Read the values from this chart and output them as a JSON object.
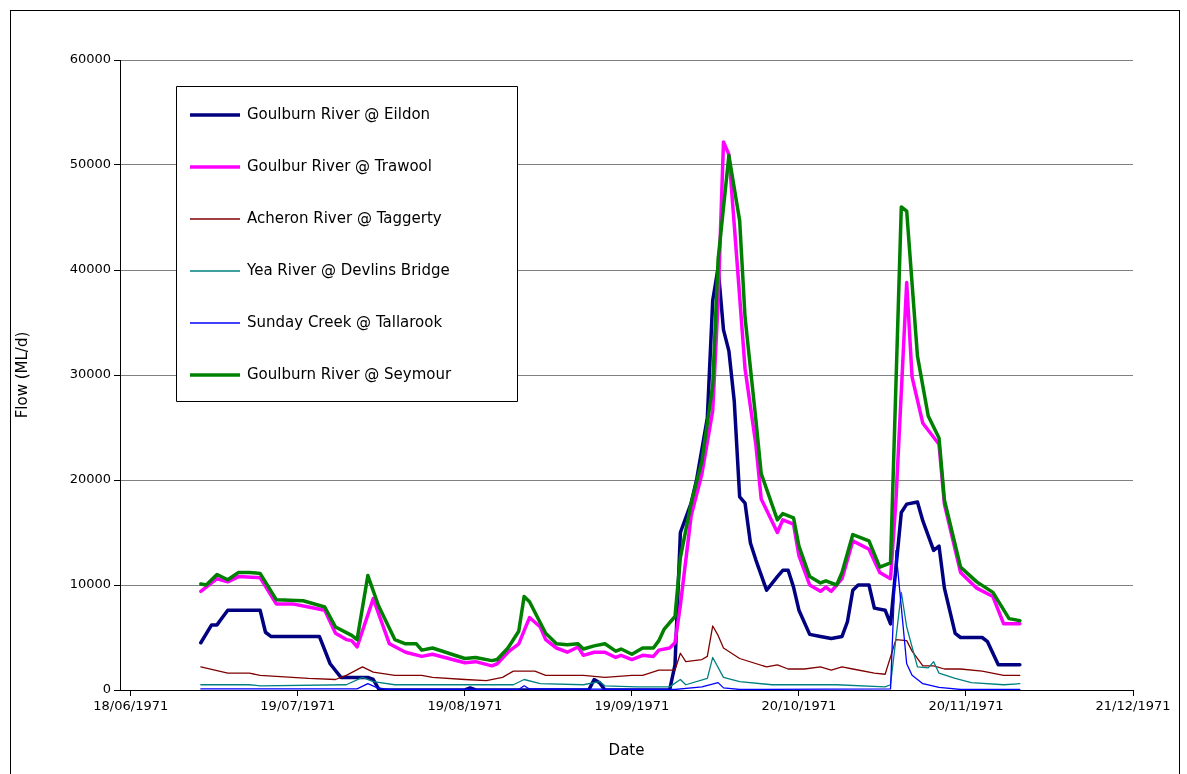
{
  "chart_data": {
    "type": "line",
    "xlabel": "Date",
    "ylabel": "Flow (ML/d)",
    "xlim": [
      "1971-06-16",
      "1971-12-21"
    ],
    "xticks": [
      {
        "value": "1971-06-18",
        "label": "18/06/1971"
      },
      {
        "value": "1971-07-19",
        "label": "19/07/1971"
      },
      {
        "value": "1971-08-19",
        "label": "19/08/1971"
      },
      {
        "value": "1971-09-19",
        "label": "19/09/1971"
      },
      {
        "value": "1971-10-20",
        "label": "20/10/1971"
      },
      {
        "value": "1971-11-20",
        "label": "20/11/1971"
      },
      {
        "value": "1971-12-21",
        "label": "21/12/1971"
      }
    ],
    "ylim": [
      0,
      60000
    ],
    "yticks": [
      0,
      10000,
      20000,
      30000,
      40000,
      50000,
      60000
    ],
    "grid": "y",
    "legend": "top left",
    "series": [
      {
        "name": "Goulburn River @ Eildon",
        "color": "#000080",
        "x": [
          "1971-07-01",
          "1971-07-03",
          "1971-07-04",
          "1971-07-05",
          "1971-07-06",
          "1971-07-12",
          "1971-07-13",
          "1971-07-14",
          "1971-07-23",
          "1971-07-25",
          "1971-07-27",
          "1971-08-01",
          "1971-08-02",
          "1971-08-03",
          "1971-08-04",
          "1971-08-19",
          "1971-08-20",
          "1971-08-21",
          "1971-09-11",
          "1971-09-12",
          "1971-09-13",
          "1971-09-14",
          "1971-09-26",
          "1971-09-27",
          "1971-09-28",
          "1971-09-30",
          "1971-10-01",
          "1971-10-03",
          "1971-10-04",
          "1971-10-05",
          "1971-10-06",
          "1971-10-07",
          "1971-10-08",
          "1971-10-09",
          "1971-10-10",
          "1971-10-11",
          "1971-10-12",
          "1971-10-14",
          "1971-10-16",
          "1971-10-17",
          "1971-10-18",
          "1971-10-19",
          "1971-10-20",
          "1971-10-22",
          "1971-10-24",
          "1971-10-26",
          "1971-10-28",
          "1971-10-29",
          "1971-10-30",
          "1971-10-31",
          "1971-11-02",
          "1971-11-03",
          "1971-11-05",
          "1971-11-06",
          "1971-11-08",
          "1971-11-09",
          "1971-11-11",
          "1971-11-12",
          "1971-11-14",
          "1971-11-15",
          "1971-11-16",
          "1971-11-18",
          "1971-11-19",
          "1971-11-23",
          "1971-11-24",
          "1971-11-26",
          "1971-11-30"
        ],
        "values": [
          4500,
          6200,
          6200,
          6900,
          7600,
          7600,
          5500,
          5100,
          5100,
          2500,
          1200,
          1200,
          1000,
          100,
          0,
          0,
          200,
          0,
          0,
          1000,
          700,
          0,
          0,
          2400,
          15000,
          17800,
          20000,
          25900,
          37100,
          40200,
          34300,
          32300,
          27500,
          18400,
          17800,
          14000,
          12400,
          9500,
          10800,
          11400,
          11400,
          9800,
          7600,
          5300,
          5100,
          4900,
          5100,
          6500,
          9500,
          10000,
          10000,
          7800,
          7600,
          6300,
          16900,
          17700,
          17900,
          16100,
          13300,
          13700,
          9700,
          5400,
          5000,
          5000,
          4600,
          2400,
          2400
        ]
      },
      {
        "name": "Goulbur River @ Trawool",
        "color": "#ff00ff",
        "x": [
          "1971-07-01",
          "1971-07-02",
          "1971-07-04",
          "1971-07-06",
          "1971-07-08",
          "1971-07-12",
          "1971-07-15",
          "1971-07-18",
          "1971-07-21",
          "1971-07-24",
          "1971-07-26",
          "1971-07-28",
          "1971-07-29",
          "1971-07-30",
          "1971-08-02",
          "1971-08-05",
          "1971-08-08",
          "1971-08-11",
          "1971-08-13",
          "1971-08-19",
          "1971-08-21",
          "1971-08-24",
          "1971-08-25",
          "1971-08-27",
          "1971-08-29",
          "1971-08-31",
          "1971-09-02",
          "1971-09-03",
          "1971-09-05",
          "1971-09-07",
          "1971-09-09",
          "1971-09-10",
          "1971-09-12",
          "1971-09-14",
          "1971-09-16",
          "1971-09-17",
          "1971-09-19",
          "1971-09-21",
          "1971-09-23",
          "1971-09-24",
          "1971-09-26",
          "1971-09-27",
          "1971-09-28",
          "1971-09-30",
          "1971-10-02",
          "1971-10-04",
          "1971-10-05",
          "1971-10-06",
          "1971-10-07",
          "1971-10-08",
          "1971-10-10",
          "1971-10-12",
          "1971-10-13",
          "1971-10-16",
          "1971-10-17",
          "1971-10-19",
          "1971-10-20",
          "1971-10-22",
          "1971-10-24",
          "1971-10-25",
          "1971-10-26",
          "1971-10-28",
          "1971-10-30",
          "1971-11-02",
          "1971-11-04",
          "1971-11-06",
          "1971-11-07",
          "1971-11-09",
          "1971-11-10",
          "1971-11-12",
          "1971-11-15",
          "1971-11-16",
          "1971-11-19",
          "1971-11-22",
          "1971-11-25",
          "1971-11-27",
          "1971-11-30"
        ],
        "values": [
          9400,
          9800,
          10600,
          10300,
          10800,
          10700,
          8200,
          8200,
          7900,
          7600,
          5400,
          4800,
          4700,
          4100,
          8700,
          4400,
          3600,
          3200,
          3400,
          2600,
          2700,
          2300,
          2500,
          3600,
          4400,
          6900,
          6000,
          4800,
          4000,
          3600,
          4100,
          3300,
          3600,
          3600,
          3100,
          3300,
          2900,
          3300,
          3200,
          3800,
          4000,
          4500,
          8100,
          16600,
          20600,
          26600,
          37000,
          52200,
          51000,
          44300,
          30600,
          23400,
          18200,
          15000,
          16200,
          15800,
          12800,
          10000,
          9400,
          9800,
          9400,
          10600,
          14200,
          13400,
          11200,
          10600,
          18000,
          38800,
          29800,
          25400,
          23400,
          17700,
          11200,
          9700,
          8900,
          6300,
          6300
        ]
      },
      {
        "name": "Acheron River @ Taggerty",
        "color": "#800000",
        "x": [
          "1971-07-01",
          "1971-07-06",
          "1971-07-10",
          "1971-07-12",
          "1971-07-15",
          "1971-07-21",
          "1971-07-26",
          "1971-07-28",
          "1971-07-31",
          "1971-08-02",
          "1971-08-06",
          "1971-08-11",
          "1971-08-13",
          "1971-08-19",
          "1971-08-23",
          "1971-08-26",
          "1971-08-28",
          "1971-08-30",
          "1971-09-01",
          "1971-09-03",
          "1971-09-07",
          "1971-09-10",
          "1971-09-14",
          "1971-09-19",
          "1971-09-21",
          "1971-09-24",
          "1971-09-27",
          "1971-09-28",
          "1971-09-29",
          "1971-10-02",
          "1971-10-03",
          "1971-10-04",
          "1971-10-05",
          "1971-10-06",
          "1971-10-09",
          "1971-10-14",
          "1971-10-16",
          "1971-10-18",
          "1971-10-21",
          "1971-10-24",
          "1971-10-26",
          "1971-10-28",
          "1971-10-30",
          "1971-11-03",
          "1971-11-05",
          "1971-11-07",
          "1971-11-09",
          "1971-11-10",
          "1971-11-12",
          "1971-11-14",
          "1971-11-16",
          "1971-11-19",
          "1971-11-23",
          "1971-11-27",
          "1971-11-30"
        ],
        "values": [
          2200,
          1600,
          1600,
          1400,
          1300,
          1100,
          1000,
          1400,
          2200,
          1700,
          1400,
          1400,
          1200,
          1000,
          900,
          1200,
          1800,
          1800,
          1800,
          1400,
          1400,
          1400,
          1200,
          1400,
          1400,
          1900,
          1900,
          3500,
          2700,
          2900,
          3200,
          6100,
          5200,
          4000,
          3000,
          2200,
          2400,
          2000,
          2000,
          2200,
          1900,
          2200,
          2000,
          1600,
          1500,
          4800,
          4700,
          3700,
          2300,
          2300,
          2000,
          2000,
          1800,
          1400,
          1400
        ]
      },
      {
        "name": "Yea River @ Devlins Bridge",
        "color": "#008080",
        "x": [
          "1971-07-01",
          "1971-07-10",
          "1971-07-12",
          "1971-07-28",
          "1971-07-31",
          "1971-08-02",
          "1971-08-06",
          "1971-08-28",
          "1971-08-30",
          "1971-09-02",
          "1971-09-10",
          "1971-09-13",
          "1971-09-14",
          "1971-09-20",
          "1971-09-26",
          "1971-09-28",
          "1971-09-29",
          "1971-10-03",
          "1971-10-04",
          "1971-10-06",
          "1971-10-09",
          "1971-10-15",
          "1971-10-27",
          "1971-11-05",
          "1971-11-06",
          "1971-11-08",
          "1971-11-09",
          "1971-11-11",
          "1971-11-13",
          "1971-11-14",
          "1971-11-15",
          "1971-11-18",
          "1971-11-21",
          "1971-11-27",
          "1971-11-30"
        ],
        "values": [
          500,
          500,
          400,
          500,
          1200,
          800,
          500,
          500,
          1000,
          600,
          500,
          800,
          400,
          300,
          300,
          1000,
          500,
          1100,
          3100,
          1200,
          800,
          500,
          500,
          300,
          500,
          9300,
          6000,
          2200,
          2100,
          2700,
          1600,
          1100,
          700,
          500,
          600
        ]
      },
      {
        "name": "Sunday Creek @ Tallarook",
        "color": "#0000ff",
        "x": [
          "1971-07-01",
          "1971-07-30",
          "1971-08-01",
          "1971-08-03",
          "1971-08-05",
          "1971-08-29",
          "1971-08-30",
          "1971-08-31",
          "1971-09-27",
          "1971-10-02",
          "1971-10-05",
          "1971-10-06",
          "1971-10-09",
          "1971-11-06",
          "1971-11-07",
          "1971-11-09",
          "1971-11-10",
          "1971-11-12",
          "1971-11-15",
          "1971-11-19",
          "1971-11-30"
        ],
        "values": [
          100,
          100,
          600,
          150,
          50,
          50,
          400,
          100,
          50,
          300,
          700,
          200,
          50,
          100,
          13300,
          2500,
          1400,
          600,
          250,
          50,
          50
        ]
      },
      {
        "name": "Goulburn River @ Seymour",
        "color": "#008000",
        "x": [
          "1971-07-01",
          "1971-07-02",
          "1971-07-04",
          "1971-07-06",
          "1971-07-08",
          "1971-07-10",
          "1971-07-12",
          "1971-07-15",
          "1971-07-20",
          "1971-07-24",
          "1971-07-26",
          "1971-07-29",
          "1971-07-30",
          "1971-08-01",
          "1971-08-03",
          "1971-08-06",
          "1971-08-08",
          "1971-08-10",
          "1971-08-11",
          "1971-08-13",
          "1971-08-19",
          "1971-08-21",
          "1971-08-24",
          "1971-08-25",
          "1971-08-27",
          "1971-08-29",
          "1971-08-30",
          "1971-08-31",
          "1971-09-02",
          "1971-09-03",
          "1971-09-05",
          "1971-09-07",
          "1971-09-09",
          "1971-09-10",
          "1971-09-12",
          "1971-09-14",
          "1971-09-16",
          "1971-09-17",
          "1971-09-19",
          "1971-09-21",
          "1971-09-23",
          "1971-09-24",
          "1971-09-25",
          "1971-09-27",
          "1971-09-28",
          "1971-09-30",
          "1971-10-02",
          "1971-10-04",
          "1971-10-05",
          "1971-10-07",
          "1971-10-09",
          "1971-10-10",
          "1971-10-12",
          "1971-10-13",
          "1971-10-16",
          "1971-10-17",
          "1971-10-19",
          "1971-10-20",
          "1971-10-22",
          "1971-10-24",
          "1971-10-25",
          "1971-10-27",
          "1971-10-28",
          "1971-10-30",
          "1971-11-02",
          "1971-11-04",
          "1971-11-06",
          "1971-11-08",
          "1971-11-09",
          "1971-11-11",
          "1971-11-13",
          "1971-11-15",
          "1971-11-16",
          "1971-11-19",
          "1971-11-22",
          "1971-11-25",
          "1971-11-28",
          "1971-11-30"
        ],
        "values": [
          10100,
          10000,
          11000,
          10500,
          11200,
          11200,
          11100,
          8600,
          8500,
          7900,
          6000,
          5200,
          4800,
          10900,
          8000,
          4800,
          4400,
          4400,
          3800,
          4000,
          3000,
          3100,
          2800,
          2900,
          4000,
          5600,
          8900,
          8400,
          6400,
          5400,
          4400,
          4300,
          4400,
          3900,
          4200,
          4400,
          3700,
          3900,
          3400,
          4000,
          4000,
          4700,
          5800,
          7000,
          12600,
          17800,
          21800,
          29000,
          41000,
          50900,
          44700,
          35500,
          25800,
          20600,
          16200,
          16800,
          16400,
          13700,
          10800,
          10200,
          10400,
          10000,
          11200,
          14800,
          14200,
          11700,
          12100,
          46000,
          45600,
          31800,
          26100,
          24000,
          18100,
          11700,
          10300,
          9300,
          6800,
          6600
        ]
      }
    ]
  }
}
